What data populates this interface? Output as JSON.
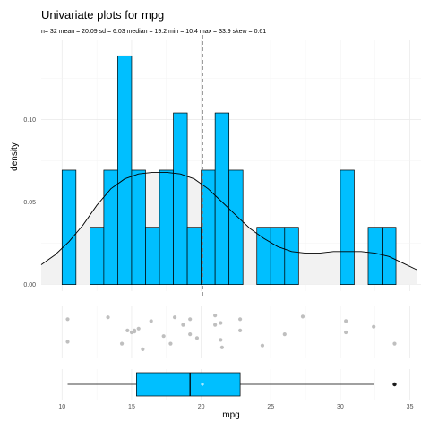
{
  "chart_data": {
    "type": "histogram+density+jitter+boxplot",
    "title": "Univariate plots for mpg",
    "subtitle": "n= 32  mean = 20.09  sd = 6.03  median = 19.2  min = 10.4  max = 33.9  skew = 0.61",
    "xlabel": "mpg",
    "ylabel": "density",
    "xlim": [
      8.5,
      35.8
    ],
    "ylim": [
      -0.004,
      0.148
    ],
    "x_ticks": [
      10,
      15,
      20,
      25,
      30,
      35
    ],
    "y_ticks": [
      0.0,
      0.05,
      0.1
    ],
    "y_tick_labels": [
      "0.00",
      "0.05",
      "0.10"
    ],
    "grid": true,
    "mean_line": 20.09,
    "bin_width": 1,
    "histogram": {
      "bin_centers": [
        10.5,
        12.5,
        13.5,
        14.5,
        15.5,
        16.5,
        17.5,
        18.5,
        19.5,
        20.5,
        21.5,
        22.5,
        24.5,
        25.5,
        26.5,
        30.5,
        32.5,
        33.5
      ],
      "densities": [
        0.0693,
        0.0347,
        0.0693,
        0.1386,
        0.0693,
        0.0347,
        0.0693,
        0.104,
        0.0347,
        0.0693,
        0.104,
        0.0693,
        0.0347,
        0.0347,
        0.0347,
        0.0693,
        0.0347,
        0.0347
      ],
      "fill": "#00BFFF"
    },
    "density_curve": {
      "x": [
        8.5,
        9.5,
        10.5,
        11.5,
        12.5,
        13.5,
        14.5,
        15.5,
        16.5,
        17.5,
        18.5,
        19.5,
        20.5,
        21.5,
        22.5,
        23.5,
        24.5,
        25.5,
        26.5,
        27.5,
        28.5,
        29.5,
        30.5,
        31.5,
        32.5,
        33.5,
        34.5,
        35.5
      ],
      "y": [
        0.012,
        0.018,
        0.026,
        0.036,
        0.048,
        0.058,
        0.064,
        0.067,
        0.068,
        0.068,
        0.067,
        0.064,
        0.058,
        0.05,
        0.042,
        0.034,
        0.028,
        0.023,
        0.02,
        0.019,
        0.019,
        0.02,
        0.02,
        0.02,
        0.019,
        0.017,
        0.013,
        0.009
      ],
      "fill": "#F2F2F2"
    },
    "jitter_points": [
      10.4,
      10.4,
      13.3,
      14.3,
      14.7,
      15.0,
      15.2,
      15.2,
      15.5,
      15.8,
      16.4,
      17.3,
      17.8,
      18.1,
      18.7,
      19.2,
      19.2,
      19.7,
      21.0,
      21.0,
      21.4,
      21.4,
      21.5,
      22.8,
      22.8,
      24.4,
      26.0,
      27.3,
      30.4,
      30.4,
      32.4,
      33.9
    ],
    "jitter_offsets": [
      0.15,
      0.75,
      0.1,
      0.8,
      0.45,
      0.5,
      0.45,
      0.48,
      0.4,
      0.95,
      0.2,
      0.6,
      0.8,
      0.1,
      0.3,
      0.15,
      0.55,
      0.65,
      0.05,
      0.3,
      0.7,
      0.25,
      0.9,
      0.15,
      0.45,
      0.85,
      0.55,
      0.08,
      0.5,
      0.2,
      0.35,
      0.8
    ],
    "boxplot": {
      "min": 10.4,
      "q1": 15.35,
      "median": 19.2,
      "mean": 20.09,
      "q3": 22.8,
      "whisker_high": 32.4,
      "outliers": [
        33.9
      ],
      "fill": "#00BFFF"
    }
  }
}
